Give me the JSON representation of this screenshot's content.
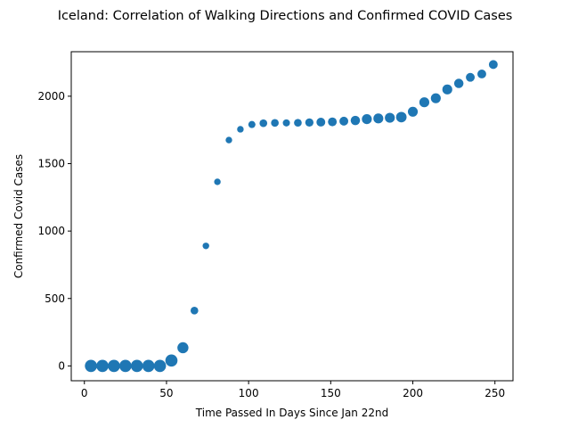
{
  "chart_data": {
    "type": "scatter",
    "title": "Iceland: Correlation of Walking Directions and Confirmed COVID Cases",
    "xlabel": "Time Passed In Days Since Jan 22nd",
    "ylabel": "Confirmed Covid Cases",
    "xlim": [
      -8,
      261
    ],
    "ylim": [
      -110,
      2330
    ],
    "xticks": [
      0,
      50,
      100,
      150,
      200,
      250
    ],
    "yticks": [
      0,
      500,
      1000,
      1500,
      2000
    ],
    "grid": false,
    "marker_color": "#1f77b4",
    "points": [
      {
        "x": 4,
        "y": 0,
        "size": 9
      },
      {
        "x": 11,
        "y": 0,
        "size": 9
      },
      {
        "x": 18,
        "y": 0,
        "size": 9
      },
      {
        "x": 25,
        "y": 0,
        "size": 9
      },
      {
        "x": 32,
        "y": 0,
        "size": 9
      },
      {
        "x": 39,
        "y": 0,
        "size": 9
      },
      {
        "x": 46,
        "y": 0,
        "size": 9
      },
      {
        "x": 53,
        "y": 40,
        "size": 9
      },
      {
        "x": 60,
        "y": 135,
        "size": 8
      },
      {
        "x": 67,
        "y": 410,
        "size": 5
      },
      {
        "x": 74,
        "y": 890,
        "size": 4
      },
      {
        "x": 81,
        "y": 1365,
        "size": 4
      },
      {
        "x": 88,
        "y": 1675,
        "size": 4
      },
      {
        "x": 95,
        "y": 1755,
        "size": 4
      },
      {
        "x": 102,
        "y": 1790,
        "size": 4.5
      },
      {
        "x": 109,
        "y": 1800,
        "size": 5
      },
      {
        "x": 116,
        "y": 1802,
        "size": 5
      },
      {
        "x": 123,
        "y": 1802,
        "size": 4.5
      },
      {
        "x": 130,
        "y": 1803,
        "size": 5
      },
      {
        "x": 137,
        "y": 1805,
        "size": 5.5
      },
      {
        "x": 144,
        "y": 1808,
        "size": 6
      },
      {
        "x": 151,
        "y": 1810,
        "size": 6
      },
      {
        "x": 158,
        "y": 1815,
        "size": 6
      },
      {
        "x": 165,
        "y": 1820,
        "size": 6.5
      },
      {
        "x": 172,
        "y": 1830,
        "size": 7
      },
      {
        "x": 179,
        "y": 1835,
        "size": 7
      },
      {
        "x": 186,
        "y": 1840,
        "size": 7
      },
      {
        "x": 193,
        "y": 1845,
        "size": 7.5
      },
      {
        "x": 200,
        "y": 1885,
        "size": 7
      },
      {
        "x": 207,
        "y": 1955,
        "size": 7
      },
      {
        "x": 214,
        "y": 1985,
        "size": 7
      },
      {
        "x": 221,
        "y": 2050,
        "size": 7
      },
      {
        "x": 228,
        "y": 2095,
        "size": 6.5
      },
      {
        "x": 235,
        "y": 2140,
        "size": 6
      },
      {
        "x": 242,
        "y": 2165,
        "size": 6
      },
      {
        "x": 249,
        "y": 2235,
        "size": 6
      }
    ]
  }
}
